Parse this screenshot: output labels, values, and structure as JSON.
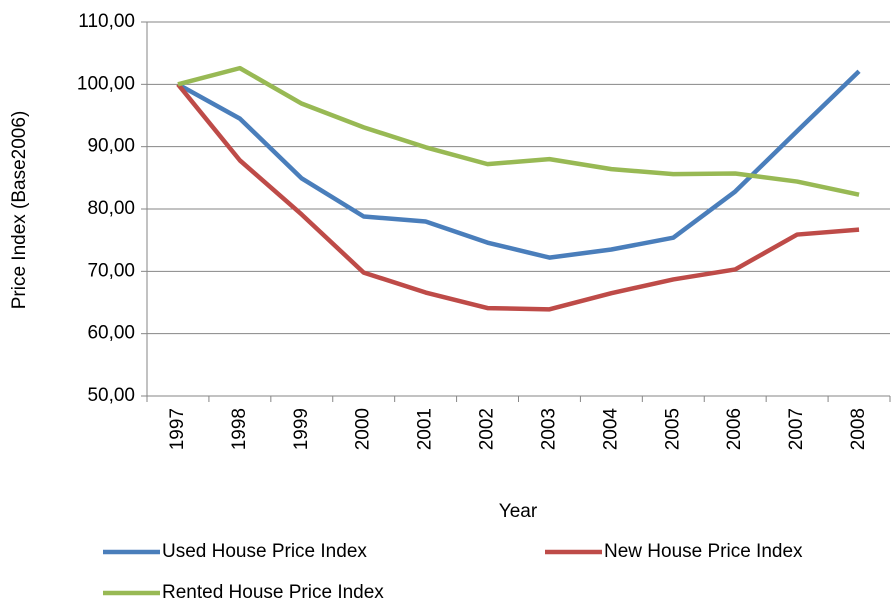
{
  "chart_data": {
    "type": "line",
    "x_label": "Year",
    "y_label": "Price Index (Base2006)",
    "categories": [
      "1997",
      "1998",
      "1999",
      "2000",
      "2001",
      "2002",
      "2003",
      "2004",
      "2005",
      "2006",
      "2007",
      "2008"
    ],
    "series": [
      {
        "name": "Used House Price Index",
        "color": "#4a7ebb",
        "values": [
          100,
          94.5,
          84.9,
          78.8,
          78.0,
          74.6,
          72.2,
          73.5,
          75.4,
          82.8,
          92.5,
          102.1
        ]
      },
      {
        "name": "New House Price Index",
        "color": "#be4b48",
        "values": [
          100,
          87.8,
          79.1,
          69.8,
          66.6,
          64.1,
          63.9,
          66.5,
          68.7,
          70.3,
          75.9,
          76.7
        ]
      },
      {
        "name": "Rented House Price Index",
        "color": "#98b954",
        "values": [
          100,
          102.6,
          96.9,
          93.1,
          89.9,
          87.2,
          88.0,
          86.4,
          85.6,
          85.7,
          84.4,
          82.3
        ]
      }
    ],
    "ylim": [
      50,
      110
    ],
    "yticks": [
      {
        "value": 50,
        "label": "50,00"
      },
      {
        "value": 60,
        "label": "60,00"
      },
      {
        "value": 70,
        "label": "70,00"
      },
      {
        "value": 80,
        "label": "80,00"
      },
      {
        "value": 90,
        "label": "90,00"
      },
      {
        "value": 100,
        "label": "100,00"
      },
      {
        "value": 110,
        "label": "110,00"
      }
    ],
    "grid": true
  }
}
